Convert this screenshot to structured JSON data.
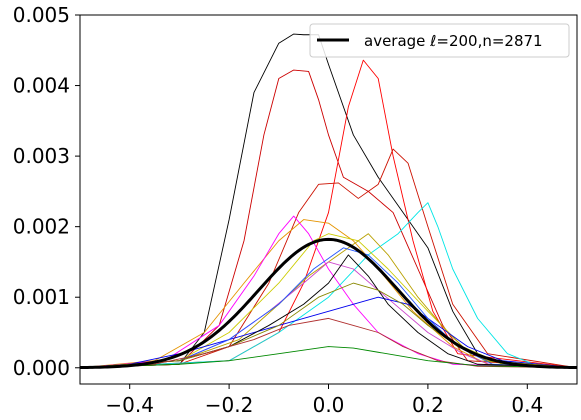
{
  "chart_data": {
    "type": "line",
    "xlim": [
      -0.5,
      0.5
    ],
    "ylim": [
      -0.00023,
      0.005
    ],
    "x_ticks": [
      -0.4,
      -0.2,
      0.0,
      0.2,
      0.4
    ],
    "x_tick_labels": [
      "−0.4",
      "−0.2",
      "0.0",
      "0.2",
      "0.4"
    ],
    "y_ticks": [
      0.0,
      0.001,
      0.002,
      0.003,
      0.004,
      0.005
    ],
    "y_tick_labels": [
      "0.000",
      "0.001",
      "0.002",
      "0.003",
      "0.004",
      "0.005"
    ],
    "grid": false,
    "legend": {
      "position": "top-right",
      "entries": [
        "average ℓ=200,n=2871"
      ]
    },
    "average": {
      "name": "average ℓ=200,n=2871",
      "color": "#000000",
      "center": 0.0,
      "sigma": 0.14,
      "peak": 0.00182
    },
    "series": [
      {
        "color": "#000000",
        "points": [
          [
            -0.5,
            0
          ],
          [
            -0.3,
            5e-05
          ],
          [
            -0.25,
            0.0005
          ],
          [
            -0.2,
            0.0021
          ],
          [
            -0.15,
            0.0039
          ],
          [
            -0.1,
            0.0046
          ],
          [
            -0.07,
            0.00473
          ],
          [
            -0.05,
            0.00472
          ],
          [
            -0.02,
            0.00472
          ],
          [
            0.0,
            0.0043
          ],
          [
            0.05,
            0.0033
          ],
          [
            0.1,
            0.0027
          ],
          [
            0.15,
            0.0022
          ],
          [
            0.2,
            0.0017
          ],
          [
            0.25,
            0.0008
          ],
          [
            0.3,
            0.0002
          ],
          [
            0.35,
            5e-05
          ],
          [
            0.5,
            0
          ]
        ]
      },
      {
        "color": "#cc0000",
        "points": [
          [
            -0.5,
            0
          ],
          [
            -0.3,
            5e-05
          ],
          [
            -0.22,
            0.0006
          ],
          [
            -0.17,
            0.0018
          ],
          [
            -0.13,
            0.0033
          ],
          [
            -0.1,
            0.0041
          ],
          [
            -0.07,
            0.00422
          ],
          [
            -0.04,
            0.0042
          ],
          [
            -0.02,
            0.0038
          ],
          [
            0.0,
            0.0033
          ],
          [
            0.03,
            0.0027
          ],
          [
            0.08,
            0.0025
          ],
          [
            0.13,
            0.0022
          ],
          [
            0.18,
            0.0014
          ],
          [
            0.23,
            0.0006
          ],
          [
            0.28,
            0.0001
          ],
          [
            0.5,
            0
          ]
        ]
      },
      {
        "color": "#ff0000",
        "points": [
          [
            -0.5,
            0
          ],
          [
            -0.2,
            0.0001
          ],
          [
            -0.1,
            0.0005
          ],
          [
            -0.05,
            0.0012
          ],
          [
            0.0,
            0.0022
          ],
          [
            0.04,
            0.0037
          ],
          [
            0.07,
            0.00436
          ],
          [
            0.1,
            0.0041
          ],
          [
            0.13,
            0.003
          ],
          [
            0.17,
            0.0018
          ],
          [
            0.21,
            0.0008
          ],
          [
            0.26,
            0.0002
          ],
          [
            0.5,
            0
          ]
        ]
      },
      {
        "color": "#cc1100",
        "points": [
          [
            -0.5,
            0
          ],
          [
            -0.3,
            5e-05
          ],
          [
            -0.2,
            0.0003
          ],
          [
            -0.12,
            0.0012
          ],
          [
            -0.06,
            0.0022
          ],
          [
            -0.02,
            0.0026
          ],
          [
            0.02,
            0.00262
          ],
          [
            0.06,
            0.0024
          ],
          [
            0.1,
            0.0026
          ],
          [
            0.13,
            0.0031
          ],
          [
            0.16,
            0.0029
          ],
          [
            0.2,
            0.002
          ],
          [
            0.25,
            0.0009
          ],
          [
            0.32,
            0.0002
          ],
          [
            0.5,
            0
          ]
        ]
      },
      {
        "color": "#00e5e5",
        "points": [
          [
            -0.5,
            0
          ],
          [
            -0.2,
            0.0001
          ],
          [
            -0.1,
            0.0005
          ],
          [
            0.0,
            0.001
          ],
          [
            0.08,
            0.0016
          ],
          [
            0.14,
            0.0019
          ],
          [
            0.18,
            0.0022
          ],
          [
            0.2,
            0.00234
          ],
          [
            0.22,
            0.002
          ],
          [
            0.25,
            0.0014
          ],
          [
            0.3,
            0.0007
          ],
          [
            0.36,
            0.0002
          ],
          [
            0.42,
            3e-05
          ],
          [
            0.5,
            0
          ]
        ]
      },
      {
        "color": "#e59400",
        "points": [
          [
            -0.5,
            0
          ],
          [
            -0.35,
            0.0001
          ],
          [
            -0.25,
            0.0005
          ],
          [
            -0.17,
            0.0012
          ],
          [
            -0.1,
            0.0018
          ],
          [
            -0.05,
            0.0021
          ],
          [
            0.0,
            0.00205
          ],
          [
            0.05,
            0.0018
          ],
          [
            0.1,
            0.0014
          ],
          [
            0.17,
            0.0008
          ],
          [
            0.25,
            0.0003
          ],
          [
            0.32,
            5e-05
          ],
          [
            0.5,
            0
          ]
        ]
      },
      {
        "color": "#cccc00",
        "points": [
          [
            -0.5,
            0
          ],
          [
            -0.3,
            0.0001
          ],
          [
            -0.2,
            0.0005
          ],
          [
            -0.1,
            0.0012
          ],
          [
            -0.03,
            0.0018
          ],
          [
            0.0,
            0.0019
          ],
          [
            0.06,
            0.0018
          ],
          [
            0.12,
            0.0014
          ],
          [
            0.2,
            0.0008
          ],
          [
            0.27,
            0.0003
          ],
          [
            0.35,
            5e-05
          ],
          [
            0.5,
            0
          ]
        ]
      },
      {
        "color": "#b8a000",
        "points": [
          [
            -0.5,
            0
          ],
          [
            -0.3,
            0.0001
          ],
          [
            -0.18,
            0.0004
          ],
          [
            -0.1,
            0.0009
          ],
          [
            -0.04,
            0.0013
          ],
          [
            0.02,
            0.0016
          ],
          [
            0.08,
            0.0019
          ],
          [
            0.12,
            0.0016
          ],
          [
            0.18,
            0.001
          ],
          [
            0.24,
            0.0005
          ],
          [
            0.3,
            0.0001
          ],
          [
            0.5,
            0
          ]
        ]
      },
      {
        "color": "#ff00ff",
        "points": [
          [
            -0.5,
            0
          ],
          [
            -0.33,
            0.0001
          ],
          [
            -0.22,
            0.0006
          ],
          [
            -0.15,
            0.0013
          ],
          [
            -0.1,
            0.0019
          ],
          [
            -0.07,
            0.00215
          ],
          [
            -0.04,
            0.0019
          ],
          [
            0.0,
            0.0014
          ],
          [
            0.05,
            0.0009
          ],
          [
            0.1,
            0.0005
          ],
          [
            0.18,
            0.0002
          ],
          [
            0.25,
            5e-05
          ],
          [
            0.5,
            0
          ]
        ]
      },
      {
        "color": "#cc44cc",
        "points": [
          [
            -0.5,
            0
          ],
          [
            -0.3,
            0.0001
          ],
          [
            -0.2,
            0.0004
          ],
          [
            -0.12,
            0.0008
          ],
          [
            -0.05,
            0.0012
          ],
          [
            0.0,
            0.0015
          ],
          [
            0.05,
            0.0014
          ],
          [
            0.1,
            0.0011
          ],
          [
            0.15,
            0.0008
          ],
          [
            0.2,
            0.0005
          ],
          [
            0.27,
            0.0002
          ],
          [
            0.33,
            3e-05
          ],
          [
            0.5,
            0
          ]
        ]
      },
      {
        "color": "#0000ee",
        "points": [
          [
            -0.5,
            0
          ],
          [
            -0.4,
            5e-05
          ],
          [
            -0.3,
            0.0002
          ],
          [
            -0.2,
            0.0004
          ],
          [
            -0.1,
            0.0006
          ],
          [
            0.0,
            0.0008
          ],
          [
            0.1,
            0.001
          ],
          [
            0.16,
            0.0009
          ],
          [
            0.22,
            0.0006
          ],
          [
            0.28,
            0.0003
          ],
          [
            0.35,
            0.0001
          ],
          [
            0.5,
            0
          ]
        ]
      },
      {
        "color": "#2255ff",
        "points": [
          [
            -0.5,
            0
          ],
          [
            -0.3,
            0.0001
          ],
          [
            -0.2,
            0.0004
          ],
          [
            -0.1,
            0.0009
          ],
          [
            -0.03,
            0.0014
          ],
          [
            0.03,
            0.0017
          ],
          [
            0.08,
            0.0016
          ],
          [
            0.14,
            0.0012
          ],
          [
            0.2,
            0.0007
          ],
          [
            0.26,
            0.0003
          ],
          [
            0.33,
            5e-05
          ],
          [
            0.5,
            0
          ]
        ]
      },
      {
        "color": "#000000",
        "points": [
          [
            -0.5,
            0
          ],
          [
            -0.3,
            0.0001
          ],
          [
            -0.2,
            0.0003
          ],
          [
            -0.12,
            0.0006
          ],
          [
            -0.05,
            0.0009
          ],
          [
            0.0,
            0.0012
          ],
          [
            0.04,
            0.0016
          ],
          [
            0.08,
            0.0013
          ],
          [
            0.12,
            0.0009
          ],
          [
            0.18,
            0.0005
          ],
          [
            0.24,
            0.0002
          ],
          [
            0.3,
            5e-05
          ],
          [
            0.5,
            0
          ]
        ]
      },
      {
        "color": "#888800",
        "points": [
          [
            -0.5,
            0
          ],
          [
            -0.3,
            0.0001
          ],
          [
            -0.2,
            0.0003
          ],
          [
            -0.1,
            0.0006
          ],
          [
            -0.02,
            0.001
          ],
          [
            0.05,
            0.0012
          ],
          [
            0.1,
            0.0011
          ],
          [
            0.15,
            0.0009
          ],
          [
            0.2,
            0.0006
          ],
          [
            0.26,
            0.0003
          ],
          [
            0.32,
            0.0001
          ],
          [
            0.5,
            0
          ]
        ]
      },
      {
        "color": "#b03030",
        "points": [
          [
            -0.5,
            0
          ],
          [
            -0.35,
            5e-05
          ],
          [
            -0.25,
            0.0002
          ],
          [
            -0.15,
            0.0004
          ],
          [
            -0.08,
            0.0006
          ],
          [
            0.0,
            0.0007
          ],
          [
            0.05,
            0.0006
          ],
          [
            0.1,
            0.0005
          ],
          [
            0.15,
            0.0003
          ],
          [
            0.22,
            0.0001
          ],
          [
            0.3,
            2e-05
          ],
          [
            0.5,
            0
          ]
        ]
      },
      {
        "color": "#008800",
        "points": [
          [
            -0.5,
            0
          ],
          [
            -0.3,
            5e-05
          ],
          [
            -0.2,
            0.0001
          ],
          [
            -0.1,
            0.0002
          ],
          [
            0.0,
            0.0003
          ],
          [
            0.05,
            0.00028
          ],
          [
            0.1,
            0.00022
          ],
          [
            0.2,
            0.0001
          ],
          [
            0.3,
            3e-05
          ],
          [
            0.5,
            0
          ]
        ]
      }
    ]
  }
}
